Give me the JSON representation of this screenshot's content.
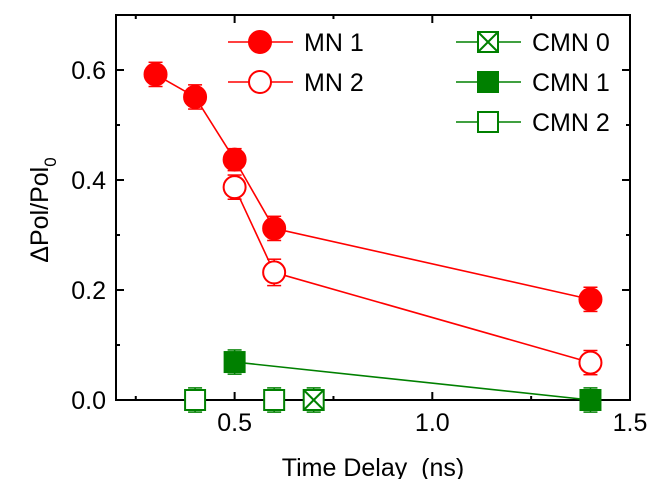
{
  "chart_data": {
    "type": "scatter",
    "xlabel": "Time Delay  (ns)",
    "ylabel_main": "ΔPol/Pol",
    "ylabel_sub": "0",
    "xlim": [
      0.2,
      1.5
    ],
    "ylim": [
      0,
      0.7
    ],
    "xticks": [
      "0.5",
      "1.0",
      "1.5"
    ],
    "yticks": [
      "0.0",
      "0.2",
      "0.4",
      "0.6"
    ],
    "grid": false,
    "legend_position": "top",
    "series": [
      {
        "name": "MN 1",
        "color": "#ff0000",
        "marker": "circle-filled",
        "connected": true,
        "x": [
          0.3,
          0.4,
          0.5,
          0.6,
          1.4
        ],
        "y": [
          0.592,
          0.551,
          0.437,
          0.312,
          0.183
        ],
        "err": [
          0.022,
          0.022,
          0.02,
          0.022,
          0.022
        ]
      },
      {
        "name": "MN 2",
        "color": "#ff0000",
        "marker": "circle-open",
        "connected": true,
        "x": [
          0.5,
          0.6,
          1.4
        ],
        "y": [
          0.387,
          0.232,
          0.068
        ],
        "err": [
          0.022,
          0.024,
          0.022
        ]
      },
      {
        "name": "CMN 0",
        "color": "#008000",
        "marker": "square-cross",
        "connected": false,
        "x": [
          0.7
        ],
        "y": [
          0.0
        ],
        "err": [
          0.022
        ]
      },
      {
        "name": "CMN 1",
        "color": "#008000",
        "marker": "square-filled",
        "connected": true,
        "x": [
          0.5,
          1.4
        ],
        "y": [
          0.069,
          0.0
        ],
        "err": [
          0.022,
          0.022
        ]
      },
      {
        "name": "CMN 2",
        "color": "#008000",
        "marker": "square-open",
        "connected": false,
        "x": [
          0.4,
          0.6
        ],
        "y": [
          0.0,
          0.0
        ],
        "err": [
          0.022,
          0.022
        ]
      }
    ]
  }
}
